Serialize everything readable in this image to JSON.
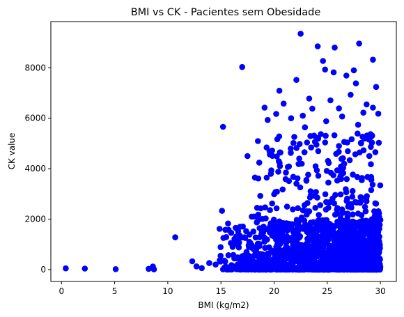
{
  "chart_data": {
    "type": "scatter",
    "title": "BMI vs CK - Pacientes sem Obesidade",
    "xlabel": "BMI (kg/m2)",
    "ylabel": "CK value",
    "xlim": [
      -1.0,
      31.5
    ],
    "ylim": [
      -470,
      9830
    ],
    "xticks": [
      "0",
      "5",
      "10",
      "15",
      "20",
      "25",
      "30"
    ],
    "yticks": [
      "0",
      "2000",
      "4000",
      "6000",
      "8000"
    ],
    "color": "#0000ff",
    "grid": false,
    "outliers": [
      [
        0.4,
        50
      ],
      [
        2.2,
        40
      ],
      [
        5.1,
        20
      ],
      [
        8.2,
        30
      ],
      [
        8.6,
        120
      ],
      [
        8.7,
        10
      ],
      [
        10.7,
        1280
      ],
      [
        12.3,
        330
      ],
      [
        12.7,
        130
      ],
      [
        13.2,
        60
      ],
      [
        13.9,
        260
      ],
      [
        14.5,
        200
      ],
      [
        15.1,
        2330
      ],
      [
        15.2,
        5660
      ],
      [
        17.0,
        8030
      ],
      [
        17.5,
        4500
      ],
      [
        18.2,
        3650
      ],
      [
        18.4,
        2450
      ],
      [
        18.9,
        2010
      ],
      [
        19.1,
        6420
      ],
      [
        19.4,
        5930
      ],
      [
        19.3,
        4840
      ],
      [
        19.7,
        3800
      ],
      [
        20.2,
        6170
      ],
      [
        20.5,
        7090
      ],
      [
        20.6,
        4640
      ],
      [
        20.9,
        6580
      ],
      [
        21.3,
        4070
      ],
      [
        21.6,
        6000
      ],
      [
        22.1,
        7520
      ],
      [
        22.5,
        9350
      ],
      [
        22.7,
        6100
      ],
      [
        22.9,
        5640
      ],
      [
        23.3,
        6780
      ],
      [
        23.6,
        6380
      ],
      [
        24.1,
        8850
      ],
      [
        24.6,
        8270
      ],
      [
        24.8,
        7930
      ],
      [
        24.4,
        5370
      ],
      [
        25.3,
        6710
      ],
      [
        25.7,
        8800
      ],
      [
        25.6,
        7820
      ],
      [
        26.1,
        6390
      ],
      [
        26.4,
        6070
      ],
      [
        26.8,
        7690
      ],
      [
        27.2,
        6930
      ],
      [
        27.5,
        7900
      ],
      [
        27.7,
        7380
      ],
      [
        28.0,
        8960
      ],
      [
        27.9,
        5740
      ],
      [
        28.4,
        6220
      ],
      [
        29.3,
        8320
      ],
      [
        29.6,
        7240
      ],
      [
        29.3,
        6420
      ],
      [
        29.8,
        6180
      ],
      [
        28.7,
        6550
      ],
      [
        27.3,
        5170
      ],
      [
        26.6,
        5060
      ],
      [
        24.9,
        5880
      ],
      [
        23.1,
        5040
      ],
      [
        21.9,
        5260
      ],
      [
        20.3,
        5170
      ],
      [
        19.6,
        4560
      ],
      [
        18.7,
        2920
      ],
      [
        17.9,
        2100
      ],
      [
        16.8,
        1700
      ],
      [
        16.5,
        1300
      ],
      [
        16.1,
        900
      ],
      [
        15.7,
        570
      ],
      [
        15.4,
        320
      ],
      [
        16.0,
        180
      ]
    ],
    "cluster": {
      "x_min": 14.8,
      "x_max": 30.0,
      "y_dense_max": 2000,
      "y_sparse_max": 5400,
      "bulk_points": 1600,
      "spread_points": 260,
      "seed": 7
    }
  }
}
